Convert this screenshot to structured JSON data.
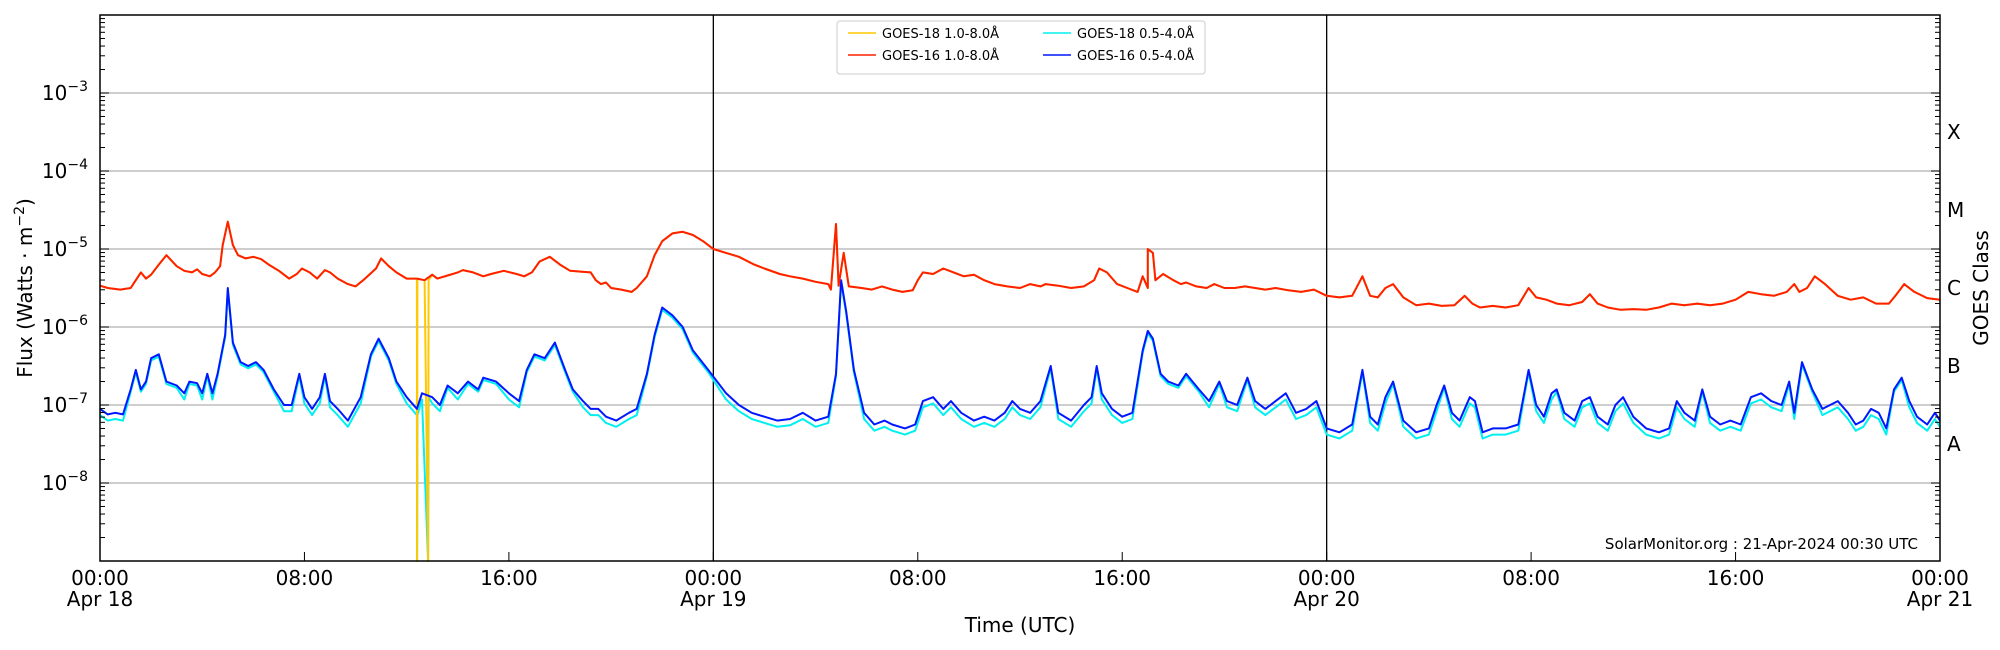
{
  "chart_data": {
    "type": "line",
    "title": "",
    "xlabel": "Time (UTC)",
    "ylabel": "Flux (Watts · m⁻²)",
    "ylabel_right": "GOES Class",
    "yscale": "log",
    "ylim": [
      1e-09,
      0.01
    ],
    "xlim_hours": [
      0,
      72
    ],
    "grid": {
      "y_major": true,
      "x": false
    },
    "legend_position": "upper center",
    "x_ticks": [
      {
        "hour": 0,
        "time": "00:00",
        "date": "Apr 18"
      },
      {
        "hour": 8,
        "time": "08:00",
        "date": ""
      },
      {
        "hour": 16,
        "time": "16:00",
        "date": ""
      },
      {
        "hour": 24,
        "time": "00:00",
        "date": "Apr 19"
      },
      {
        "hour": 32,
        "time": "08:00",
        "date": ""
      },
      {
        "hour": 40,
        "time": "16:00",
        "date": ""
      },
      {
        "hour": 48,
        "time": "00:00",
        "date": "Apr 20"
      },
      {
        "hour": 56,
        "time": "08:00",
        "date": ""
      },
      {
        "hour": 64,
        "time": "16:00",
        "date": ""
      },
      {
        "hour": 72,
        "time": "00:00",
        "date": "Apr 21"
      }
    ],
    "y_ticks": [
      {
        "exp": -3,
        "label": "10",
        "sup": "−3"
      },
      {
        "exp": -4,
        "label": "10",
        "sup": "−4"
      },
      {
        "exp": -5,
        "label": "10",
        "sup": "−5"
      },
      {
        "exp": -6,
        "label": "10",
        "sup": "−6"
      },
      {
        "exp": -7,
        "label": "10",
        "sup": "−7"
      },
      {
        "exp": -8,
        "label": "10",
        "sup": "−8"
      }
    ],
    "class_labels": [
      {
        "label": "X",
        "log_center": -3.5
      },
      {
        "label": "M",
        "log_center": -4.5
      },
      {
        "label": "C",
        "log_center": -5.5
      },
      {
        "label": "B",
        "log_center": -6.5
      },
      {
        "label": "A",
        "log_center": -7.5
      }
    ],
    "day_dividers_hours": [
      24,
      48
    ],
    "series": [
      {
        "name": "GOES-18 1.0-8.0Å",
        "color": "#ffc800",
        "note": "tracks GOES-16 1.0-8.0Å; data dropouts near 12.4h and 12.9h",
        "points_log10": [
          [
            0,
            -5.49
          ],
          [
            12.2,
            -5.27
          ],
          [
            12.4,
            -5.27
          ],
          [
            12.41,
            -9.2
          ],
          [
            12.42,
            -5.28
          ],
          [
            12.8,
            -5.38
          ],
          [
            12.85,
            -9.2
          ],
          [
            12.9,
            -5.38
          ],
          [
            13,
            -5.4
          ]
        ]
      },
      {
        "name": "GOES-16 1.0-8.0Å",
        "color": "#ff2000",
        "points_log10": [
          [
            0,
            -5.47
          ],
          [
            0.3,
            -5.5
          ],
          [
            0.8,
            -5.52
          ],
          [
            1.2,
            -5.5
          ],
          [
            1.4,
            -5.4
          ],
          [
            1.6,
            -5.3
          ],
          [
            1.8,
            -5.38
          ],
          [
            2.0,
            -5.33
          ],
          [
            2.3,
            -5.2
          ],
          [
            2.6,
            -5.08
          ],
          [
            3.0,
            -5.22
          ],
          [
            3.3,
            -5.28
          ],
          [
            3.6,
            -5.3
          ],
          [
            3.8,
            -5.26
          ],
          [
            4.0,
            -5.32
          ],
          [
            4.3,
            -5.35
          ],
          [
            4.5,
            -5.3
          ],
          [
            4.7,
            -5.22
          ],
          [
            4.8,
            -4.95
          ],
          [
            5.0,
            -4.65
          ],
          [
            5.2,
            -4.95
          ],
          [
            5.4,
            -5.08
          ],
          [
            5.7,
            -5.12
          ],
          [
            6.0,
            -5.1
          ],
          [
            6.3,
            -5.13
          ],
          [
            6.6,
            -5.2
          ],
          [
            7.0,
            -5.28
          ],
          [
            7.4,
            -5.38
          ],
          [
            7.7,
            -5.32
          ],
          [
            7.9,
            -5.25
          ],
          [
            8.2,
            -5.3
          ],
          [
            8.5,
            -5.38
          ],
          [
            8.8,
            -5.27
          ],
          [
            9.0,
            -5.3
          ],
          [
            9.3,
            -5.38
          ],
          [
            9.7,
            -5.45
          ],
          [
            10.0,
            -5.48
          ],
          [
            10.3,
            -5.4
          ],
          [
            10.8,
            -5.25
          ],
          [
            11.0,
            -5.12
          ],
          [
            11.3,
            -5.22
          ],
          [
            11.6,
            -5.3
          ],
          [
            12.0,
            -5.38
          ],
          [
            12.4,
            -5.38
          ],
          [
            12.7,
            -5.4
          ],
          [
            13.0,
            -5.33
          ],
          [
            13.2,
            -5.38
          ],
          [
            13.6,
            -5.34
          ],
          [
            14.0,
            -5.3
          ],
          [
            14.2,
            -5.27
          ],
          [
            14.6,
            -5.3
          ],
          [
            15.0,
            -5.35
          ],
          [
            15.3,
            -5.32
          ],
          [
            15.8,
            -5.28
          ],
          [
            16.3,
            -5.32
          ],
          [
            16.6,
            -5.35
          ],
          [
            16.9,
            -5.3
          ],
          [
            17.2,
            -5.16
          ],
          [
            17.6,
            -5.1
          ],
          [
            18.0,
            -5.2
          ],
          [
            18.4,
            -5.28
          ],
          [
            18.8,
            -5.29
          ],
          [
            19.2,
            -5.3
          ],
          [
            19.4,
            -5.4
          ],
          [
            19.6,
            -5.45
          ],
          [
            19.8,
            -5.43
          ],
          [
            20.0,
            -5.5
          ],
          [
            20.4,
            -5.52
          ],
          [
            20.8,
            -5.55
          ],
          [
            21.0,
            -5.5
          ],
          [
            21.4,
            -5.35
          ],
          [
            21.7,
            -5.08
          ],
          [
            22.0,
            -4.9
          ],
          [
            22.4,
            -4.8
          ],
          [
            22.8,
            -4.78
          ],
          [
            23.2,
            -4.82
          ],
          [
            23.6,
            -4.9
          ],
          [
            24.0,
            -5.0
          ],
          [
            24.5,
            -5.05
          ],
          [
            25.0,
            -5.1
          ],
          [
            25.6,
            -5.2
          ],
          [
            26.0,
            -5.25
          ],
          [
            26.6,
            -5.32
          ],
          [
            27.0,
            -5.35
          ],
          [
            27.5,
            -5.38
          ],
          [
            28.0,
            -5.42
          ],
          [
            28.5,
            -5.45
          ],
          [
            28.9,
            -5.47
          ],
          [
            29.3,
            -5.48
          ],
          [
            29.8,
            -5.5
          ],
          [
            30.2,
            -5.52
          ],
          [
            30.6,
            -5.48
          ],
          [
            31.0,
            -5.52
          ],
          [
            31.4,
            -5.55
          ],
          [
            31.8,
            -5.53
          ],
          [
            32.0,
            -5.4
          ],
          [
            32.2,
            -5.3
          ],
          [
            32.6,
            -5.32
          ],
          [
            33.0,
            -5.25
          ],
          [
            33.4,
            -5.3
          ],
          [
            33.8,
            -5.35
          ],
          [
            34.2,
            -5.33
          ],
          [
            34.6,
            -5.4
          ],
          [
            35.0,
            -5.45
          ],
          [
            35.5,
            -5.48
          ],
          [
            36.0,
            -5.5
          ],
          [
            36.4,
            -5.45
          ],
          [
            36.8,
            -5.48
          ],
          [
            37.0,
            -5.45
          ]
        ]
      },
      {
        "name": "GOES-18 0.5-4.0Å",
        "color": "#00f0f0",
        "note": "tracks GOES-16 0.5-4.0Å, typically slightly lower; data dropouts near 12.4h and 12.9h",
        "offset_log10": -0.07
      },
      {
        "name": "GOES-16 0.5-4.0Å",
        "color": "#0018ff",
        "points_log10": []
      }
    ]
  },
  "legend": {
    "items": [
      {
        "label": "GOES-18 1.0-8.0Å",
        "color": "#ffc800"
      },
      {
        "label": "GOES-16 1.0-8.0Å",
        "color": "#ff2000"
      },
      {
        "label": "GOES-18 0.5-4.0Å",
        "color": "#00f0f0"
      },
      {
        "label": "GOES-16 0.5-4.0Å",
        "color": "#0018ff"
      }
    ]
  },
  "watermark": "SolarMonitor.org : 21-Apr-2024 00:30 UTC"
}
